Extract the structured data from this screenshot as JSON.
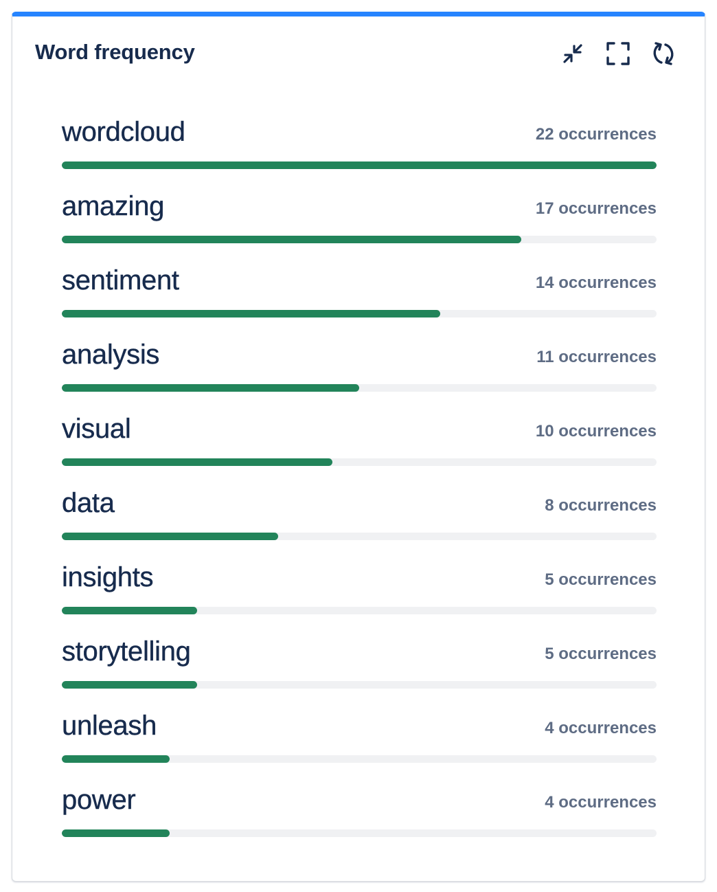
{
  "widget": {
    "title": "Word frequency",
    "accent_color": "#2684ff",
    "bar_color": "#22845a",
    "toolbar": [
      {
        "name": "collapse-button",
        "icon": "collapse-arrows-icon"
      },
      {
        "name": "fullscreen-button",
        "icon": "fullscreen-icon"
      },
      {
        "name": "refresh-button",
        "icon": "refresh-icon"
      }
    ]
  },
  "words": [
    {
      "word": "wordcloud",
      "count": 22,
      "label": "22 occurrences"
    },
    {
      "word": "amazing",
      "count": 17,
      "label": "17 occurrences"
    },
    {
      "word": "sentiment",
      "count": 14,
      "label": "14 occurrences"
    },
    {
      "word": "analysis",
      "count": 11,
      "label": "11 occurrences"
    },
    {
      "word": "visual",
      "count": 10,
      "label": "10 occurrences"
    },
    {
      "word": "data",
      "count": 8,
      "label": "8 occurrences"
    },
    {
      "word": "insights",
      "count": 5,
      "label": "5 occurrences"
    },
    {
      "word": "storytelling",
      "count": 5,
      "label": "5 occurrences"
    },
    {
      "word": "unleash",
      "count": 4,
      "label": "4 occurrences"
    },
    {
      "word": "power",
      "count": 4,
      "label": "4 occurrences"
    }
  ]
}
